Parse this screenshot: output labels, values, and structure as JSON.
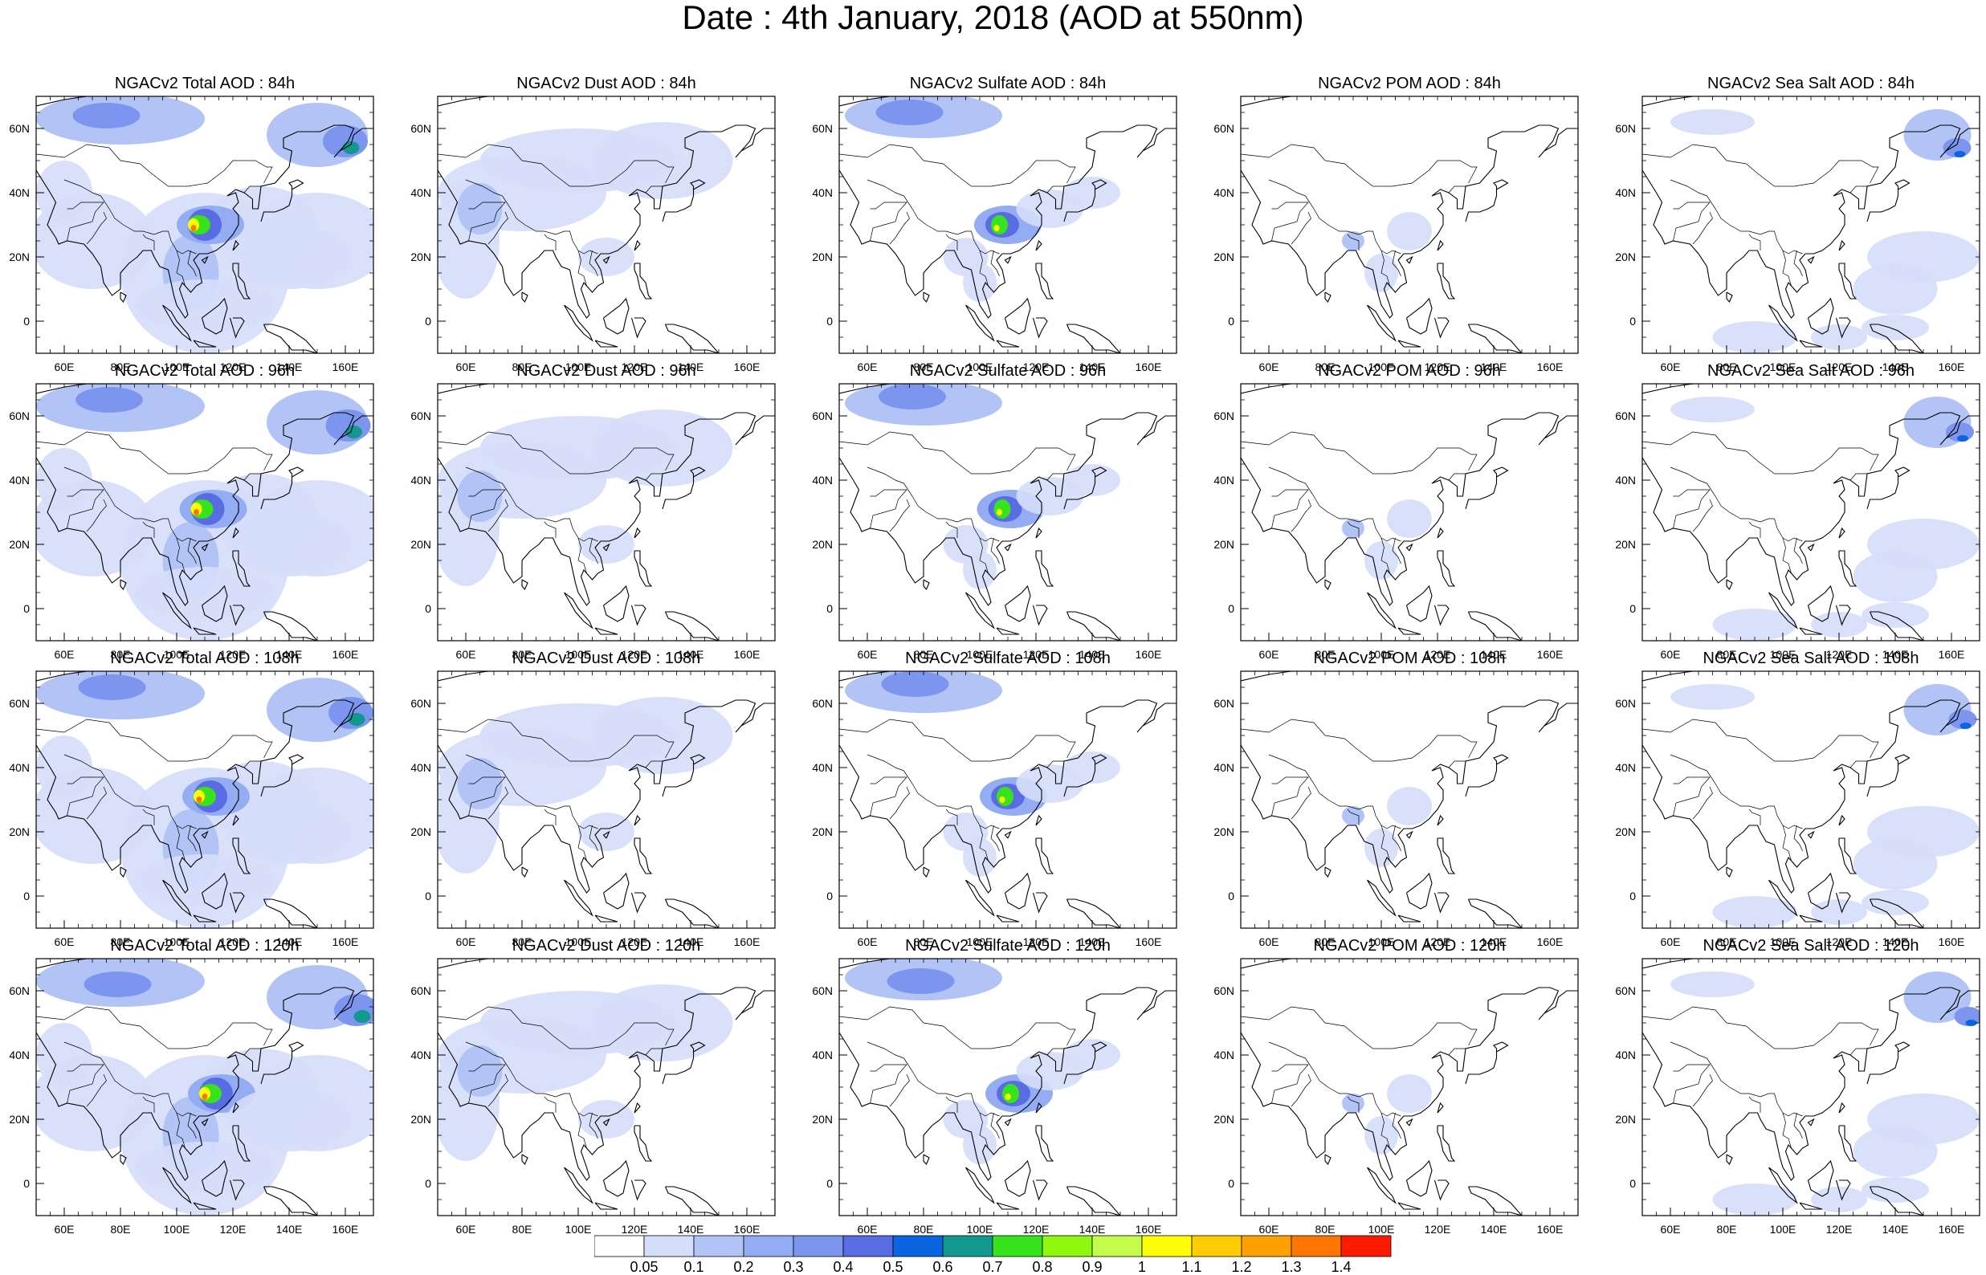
{
  "title": "Date : 4th January, 2018 (AOD at 550nm)",
  "panels": [
    {
      "title": "NGACv2 Total AOD : 84h",
      "species": "total",
      "lead": 84
    },
    {
      "title": "NGACv2 Dust AOD : 84h",
      "species": "dust",
      "lead": 84
    },
    {
      "title": "NGACv2 Sulfate AOD : 84h",
      "species": "sulfate",
      "lead": 84
    },
    {
      "title": "NGACv2 POM AOD : 84h",
      "species": "pom",
      "lead": 84
    },
    {
      "title": "NGACv2 Sea Salt AOD : 84h",
      "species": "seasalt",
      "lead": 84
    },
    {
      "title": "NGACv2 Total AOD : 96h",
      "species": "total",
      "lead": 96
    },
    {
      "title": "NGACv2 Dust AOD : 96h",
      "species": "dust",
      "lead": 96
    },
    {
      "title": "NGACv2 Sulfate AOD : 96h",
      "species": "sulfate",
      "lead": 96
    },
    {
      "title": "NGACv2 POM AOD : 96h",
      "species": "pom",
      "lead": 96
    },
    {
      "title": "NGACv2 Sea Salt AOD : 96h",
      "species": "seasalt",
      "lead": 96
    },
    {
      "title": "NGACv2 Total AOD : 108h",
      "species": "total",
      "lead": 108
    },
    {
      "title": "NGACv2 Dust AOD : 108h",
      "species": "dust",
      "lead": 108
    },
    {
      "title": "NGACv2 Sulfate AOD : 108h",
      "species": "sulfate",
      "lead": 108
    },
    {
      "title": "NGACv2 POM AOD : 108h",
      "species": "pom",
      "lead": 108
    },
    {
      "title": "NGACv2 Sea Salt AOD : 108h",
      "species": "seasalt",
      "lead": 108
    },
    {
      "title": "NGACv2 Total AOD : 120h",
      "species": "total",
      "lead": 120
    },
    {
      "title": "NGACv2 Dust AOD : 120h",
      "species": "dust",
      "lead": 120
    },
    {
      "title": "NGACv2 Sulfate AOD : 120h",
      "species": "sulfate",
      "lead": 120
    },
    {
      "title": "NGACv2 POM AOD : 120h",
      "species": "pom",
      "lead": 120
    },
    {
      "title": "NGACv2 Sea Salt  AOD : 120h",
      "species": "seasalt",
      "lead": 120
    }
  ],
  "map": {
    "lon_range": [
      50,
      170
    ],
    "lat_range": [
      -10,
      70
    ],
    "lon_ticks": [
      "60E",
      "80E",
      "100E",
      "120E",
      "140E",
      "160E"
    ],
    "lon_tick_values": [
      60,
      80,
      100,
      120,
      140,
      160
    ],
    "lat_ticks": [
      "60N",
      "40N",
      "20N",
      "0"
    ],
    "lat_tick_values": [
      60,
      40,
      20,
      0
    ]
  },
  "colorbar": {
    "labels": [
      "0.05",
      "0.1",
      "0.2",
      "0.3",
      "0.4",
      "0.5",
      "0.6",
      "0.7",
      "0.8",
      "0.9",
      "1",
      "1.1",
      "1.2",
      "1.3",
      "1.4"
    ],
    "colors": [
      "#ffffff",
      "#d5def9",
      "#b2c3f5",
      "#93acf2",
      "#7c95ee",
      "#5a6ce4",
      "#0a66e0",
      "#13988f",
      "#37e31b",
      "#8ef80f",
      "#c3fc4a",
      "#ffff00",
      "#ffcc00",
      "#ffa200",
      "#ff7700",
      "#ff1a00"
    ]
  }
}
